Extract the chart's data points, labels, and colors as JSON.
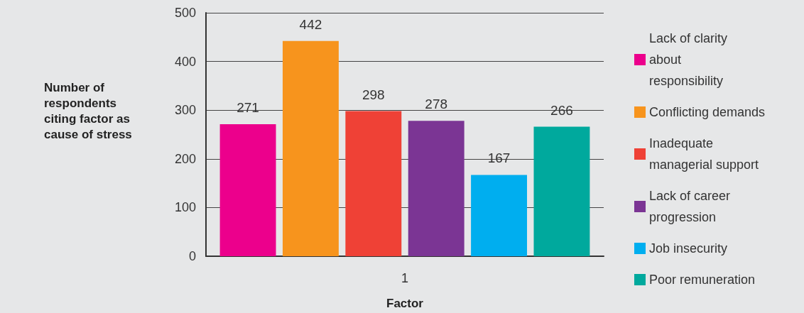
{
  "chart_data": {
    "type": "bar",
    "xlabel": "Factor",
    "ylabel": "Number of respondents citing factor as cause of stress",
    "categories": [
      "1"
    ],
    "series": [
      {
        "name": "Lack of clarity about responsibility",
        "color": "#ec008c",
        "values": [
          271
        ]
      },
      {
        "name": "Conflicting demands",
        "color": "#f7941d",
        "values": [
          442
        ]
      },
      {
        "name": "Inadequate managerial support",
        "color": "#ef4136",
        "values": [
          298
        ]
      },
      {
        "name": "Lack of career progression",
        "color": "#7b3594",
        "values": [
          278
        ]
      },
      {
        "name": "Job insecurity",
        "color": "#00aeef",
        "values": [
          167
        ]
      },
      {
        "name": "Poor remuneration",
        "color": "#00a99d",
        "values": [
          266
        ]
      }
    ],
    "ylim": [
      0,
      500
    ],
    "yticks": [
      0,
      100,
      200,
      300,
      400,
      500
    ],
    "grid": "y",
    "legend": "right",
    "data_labels": true
  }
}
